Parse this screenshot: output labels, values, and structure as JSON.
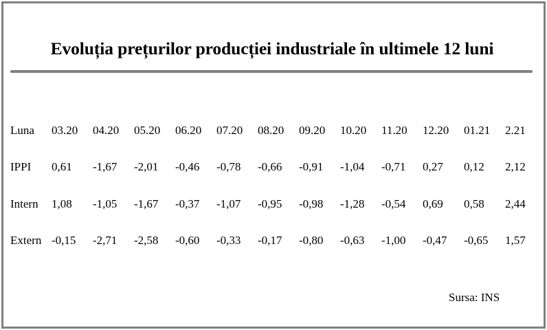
{
  "title": "Evoluția prețurilor producției industriale în ultimele 12 luni",
  "table": {
    "rows": [
      {
        "label": "Luna",
        "values": [
          "03.20",
          "04.20",
          "05.20",
          "06.20",
          "07.20",
          "08.20",
          "09.20",
          "10.20",
          "11.20",
          "12.20",
          "01.21",
          "2.21"
        ]
      },
      {
        "label": "IPPI",
        "values": [
          "0,61",
          "-1,67",
          "-2,01",
          "-0,46",
          "-0,78",
          "-0,66",
          "-0,91",
          "-1,04",
          "-0,71",
          "0,27",
          "0,12",
          "2,12"
        ]
      },
      {
        "label": "Intern",
        "values": [
          "1,08",
          "-1,05",
          "-1,67",
          "-0,37",
          "-1,07",
          "-0,95",
          "-0,98",
          "-1,28",
          "-0,54",
          "0,69",
          "0,58",
          "2,44"
        ]
      },
      {
        "label": "Extern",
        "values": [
          "-0,15",
          "-2,71",
          "-2,58",
          "-0,60",
          "-0,33",
          "-0,17",
          "-0,80",
          "-0,63",
          "-1,00",
          "-0,47",
          "-0,65",
          "1,57"
        ]
      }
    ]
  },
  "source": "Sursa: INS"
}
